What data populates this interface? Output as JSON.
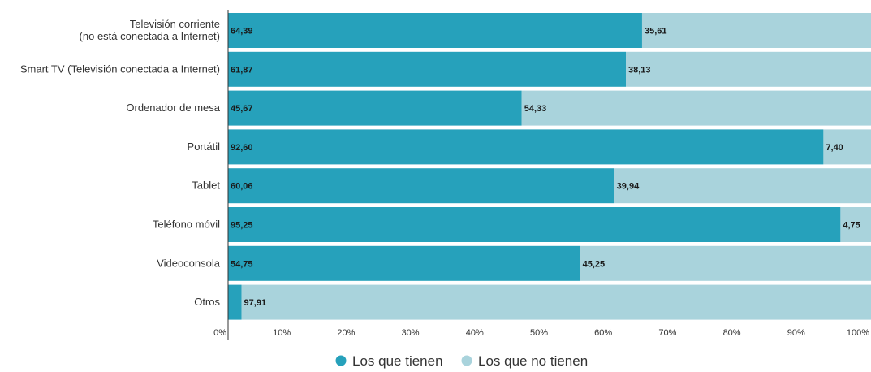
{
  "chart_data": {
    "type": "bar",
    "orientation": "horizontal",
    "stacked": true,
    "categories": [
      [
        "Televisión corriente",
        "(no está conectada a Internet)"
      ],
      [
        "Smart TV (Televisión conectada a Internet)"
      ],
      [
        "Ordenador de mesa"
      ],
      [
        "Portátil"
      ],
      [
        "Tablet"
      ],
      [
        "Teléfono móvil"
      ],
      [
        "Videoconsola"
      ],
      [
        "Otros"
      ]
    ],
    "series": [
      {
        "name": "Los que tienen",
        "color": "#26a1bb",
        "values": [
          64.39,
          61.87,
          45.67,
          92.6,
          60.06,
          95.25,
          54.75,
          2.09
        ],
        "value_labels": [
          "64,39",
          "61,87",
          "45,67",
          "92,60",
          "60,06",
          "95,25",
          "54,75",
          ""
        ]
      },
      {
        "name": "Los que no tienen",
        "color": "#a9d3dc",
        "values": [
          35.61,
          38.13,
          54.33,
          7.4,
          39.94,
          4.75,
          45.25,
          97.91
        ],
        "value_labels": [
          "35,61",
          "38,13",
          "54,33",
          "7,40",
          "39,94",
          "4,75",
          "45,25",
          "97,91"
        ]
      }
    ],
    "xlim": [
      0,
      100
    ],
    "x_ticks": [
      "0%",
      "10%",
      "20%",
      "30%",
      "40%",
      "50%",
      "60%",
      "70%",
      "80%",
      "90%",
      "100%"
    ],
    "legend_position": "bottom-center",
    "grid": false
  }
}
